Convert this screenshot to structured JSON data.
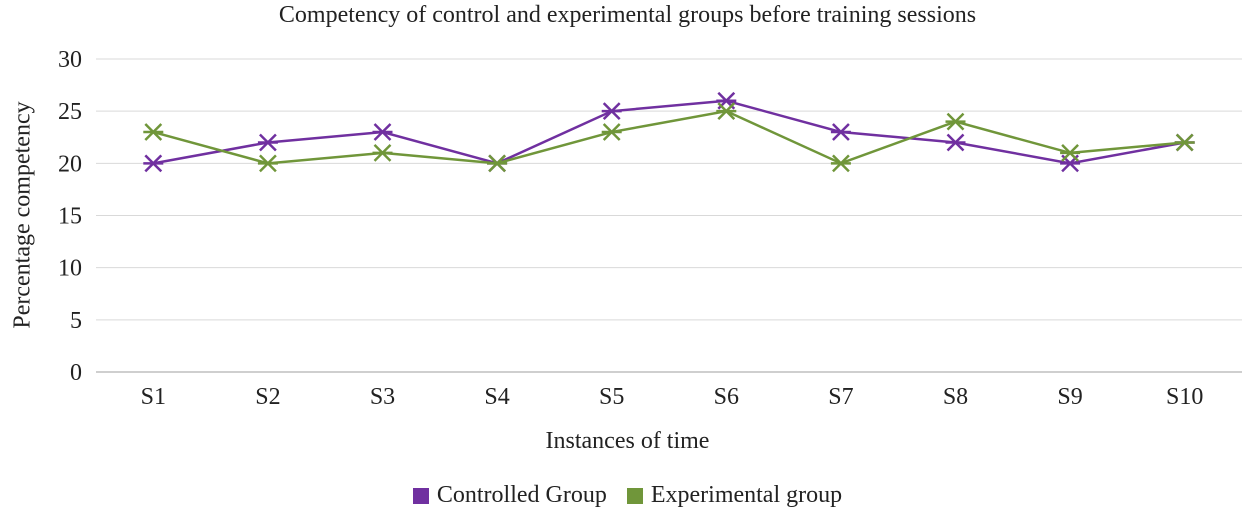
{
  "chart_data": {
    "type": "line",
    "title": "Competency of control and experimental groups before training sessions",
    "xlabel": "Instances of time",
    "ylabel": "Percentage competency",
    "categories": [
      "S1",
      "S2",
      "S3",
      "S4",
      "S5",
      "S6",
      "S7",
      "S8",
      "S9",
      "S10"
    ],
    "ylim": [
      0,
      30
    ],
    "yticks": [
      "0",
      "5",
      "10",
      "15",
      "20",
      "25",
      "30"
    ],
    "grid": true,
    "legend_position": "bottom",
    "series": [
      {
        "name": "Controlled Group",
        "color": "#7030a0",
        "values": [
          20,
          22,
          23,
          20,
          25,
          26,
          23,
          22,
          20,
          22
        ]
      },
      {
        "name": "Experimental group",
        "color": "#70963a",
        "values": [
          23,
          20,
          21,
          20,
          23,
          25,
          20,
          24,
          21,
          22
        ]
      }
    ]
  }
}
